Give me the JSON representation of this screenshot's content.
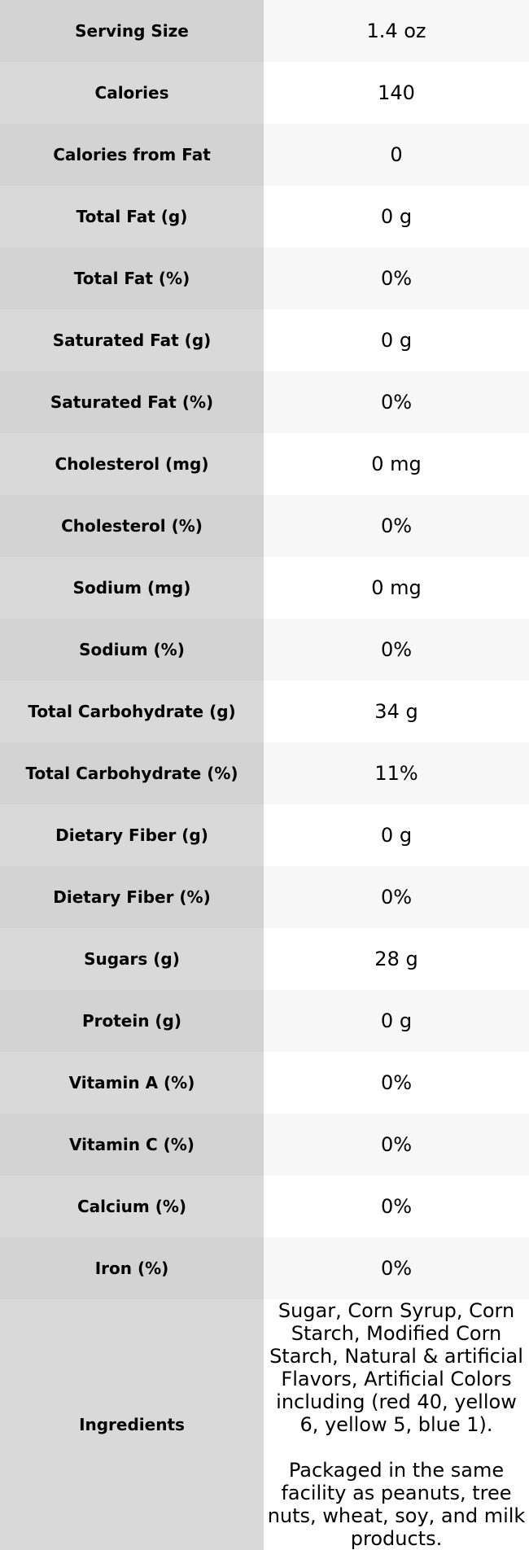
{
  "table": {
    "rows": [
      [
        "Serving Size",
        "1.4 oz"
      ],
      [
        "Calories",
        "140"
      ],
      [
        "Calories from Fat",
        "0"
      ],
      [
        "Total Fat (g)",
        "0 g"
      ],
      [
        "Total Fat (%)",
        "0%"
      ],
      [
        "Saturated Fat (g)",
        "0 g"
      ],
      [
        "Saturated Fat (%)",
        "0%"
      ],
      [
        "Cholesterol (mg)",
        "0 mg"
      ],
      [
        "Cholesterol (%)",
        "0%"
      ],
      [
        "Sodium (mg)",
        "0 mg"
      ],
      [
        "Sodium (%)",
        "0%"
      ],
      [
        "Total Carbohydrate (g)",
        "34 g"
      ],
      [
        "Total Carbohydrate (%)",
        "11%"
      ],
      [
        "Dietary Fiber (g)",
        "0 g"
      ],
      [
        "Dietary Fiber (%)",
        "0%"
      ],
      [
        "Sugars (g)",
        "28 g"
      ],
      [
        "Protein (g)",
        "0 g"
      ],
      [
        "Vitamin A (%)",
        "0%"
      ],
      [
        "Vitamin C (%)",
        "0%"
      ],
      [
        "Calcium (%)",
        "0%"
      ],
      [
        "Iron (%)",
        "0%"
      ]
    ],
    "ingredients": {
      "label": "Ingredients",
      "paragraphs": [
        "Sugar, Corn Syrup, Corn Starch, Modified Corn Starch, Natural & artificial Flavors, Artificial Colors including (red 40, yellow 6, yellow 5, blue 1).",
        "Packaged in the same facility as peanuts, tree nuts, wheat, soy, and milk products."
      ]
    }
  }
}
